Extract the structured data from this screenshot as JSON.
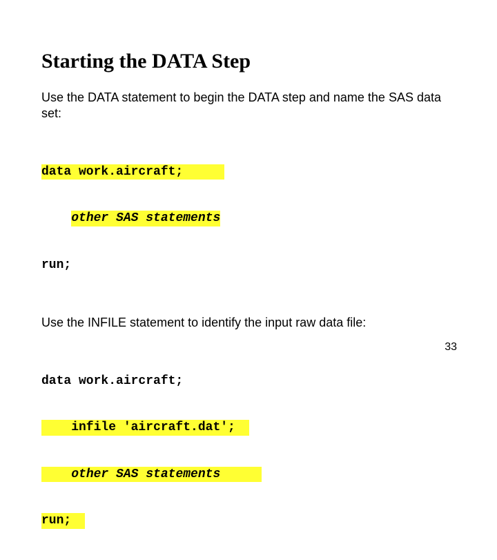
{
  "title": "Starting the DATA Step",
  "para1": "Use the DATA statement to begin the DATA step and name the SAS data set:",
  "code1": {
    "l1": "data work.aircraft;",
    "l2_indent": "    ",
    "l2_text": "other SAS statements",
    "l3": "run;"
  },
  "para2": "Use the INFILE statement to identify the input raw data file:",
  "code2": {
    "l1": "data work.aircraft;",
    "l2": "    infile 'aircraft.dat';",
    "l3_indent": "    ",
    "l3_text": "other SAS statements",
    "l4": "run;"
  },
  "pageNumber": "33",
  "colors": {
    "highlight": "#ffff33",
    "background": "#ffffff",
    "text": "#000000"
  },
  "fonts": {
    "title_family": "Times New Roman",
    "title_size_pt": 30,
    "body_family": "Arial",
    "body_size_pt": 18,
    "code_family": "Courier New",
    "code_size_pt": 18
  }
}
